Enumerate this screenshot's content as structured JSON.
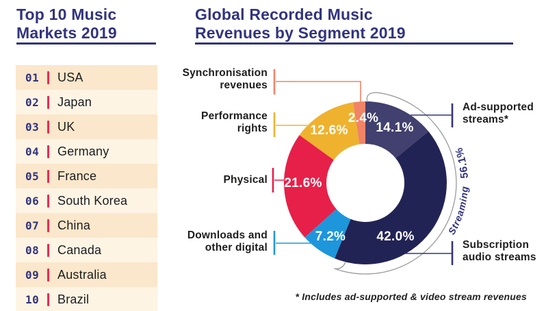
{
  "left_panel": {
    "title": [
      "Top 10 Music",
      "Markets 2019"
    ],
    "markets": [
      {
        "rank": "01",
        "name": "USA"
      },
      {
        "rank": "02",
        "name": "Japan"
      },
      {
        "rank": "03",
        "name": "UK"
      },
      {
        "rank": "04",
        "name": "Germany"
      },
      {
        "rank": "05",
        "name": "France"
      },
      {
        "rank": "06",
        "name": "South Korea"
      },
      {
        "rank": "07",
        "name": "China"
      },
      {
        "rank": "08",
        "name": "Canada"
      },
      {
        "rank": "09",
        "name": "Australia"
      },
      {
        "rank": "10",
        "name": "Brazil"
      }
    ]
  },
  "chart_panel": {
    "title": [
      "Global Recorded Music",
      "Revenues by Segment 2019"
    ],
    "footnote": "* Includes ad-supported & video stream revenues"
  },
  "chart_data": {
    "type": "pie",
    "subtype": "donut",
    "title": "Global Recorded Music Revenues by Segment 2019",
    "start_angle_deg": 0,
    "direction": "clockwise",
    "segments": [
      {
        "label": "Ad-supported streams*",
        "value": 14.1,
        "pct_label": "14.1%",
        "color": "#41406e"
      },
      {
        "label": "Subscription audio streams",
        "value": 42.0,
        "pct_label": "42.0%",
        "color": "#222355"
      },
      {
        "label": "Downloads and other digital",
        "value": 7.2,
        "pct_label": "7.2%",
        "color": "#1e96dc"
      },
      {
        "label": "Physical",
        "value": 21.6,
        "pct_label": "21.6%",
        "color": "#e62049"
      },
      {
        "label": "Performance rights",
        "value": 12.6,
        "pct_label": "12.6%",
        "color": "#efb22e"
      },
      {
        "label": "Synchronisation revenues",
        "value": 2.4,
        "pct_label": "2.4%",
        "color": "#f08466"
      }
    ],
    "group_annotation": {
      "label": "Streaming",
      "value": "56.1%"
    },
    "colors": {
      "accent_navy": "#32347e",
      "rank_red": "#ee2950",
      "row_bg_dark": "#fbe7cb",
      "row_bg_light": "#fdf4e4",
      "arc_gray": "#9a9a9a"
    }
  }
}
